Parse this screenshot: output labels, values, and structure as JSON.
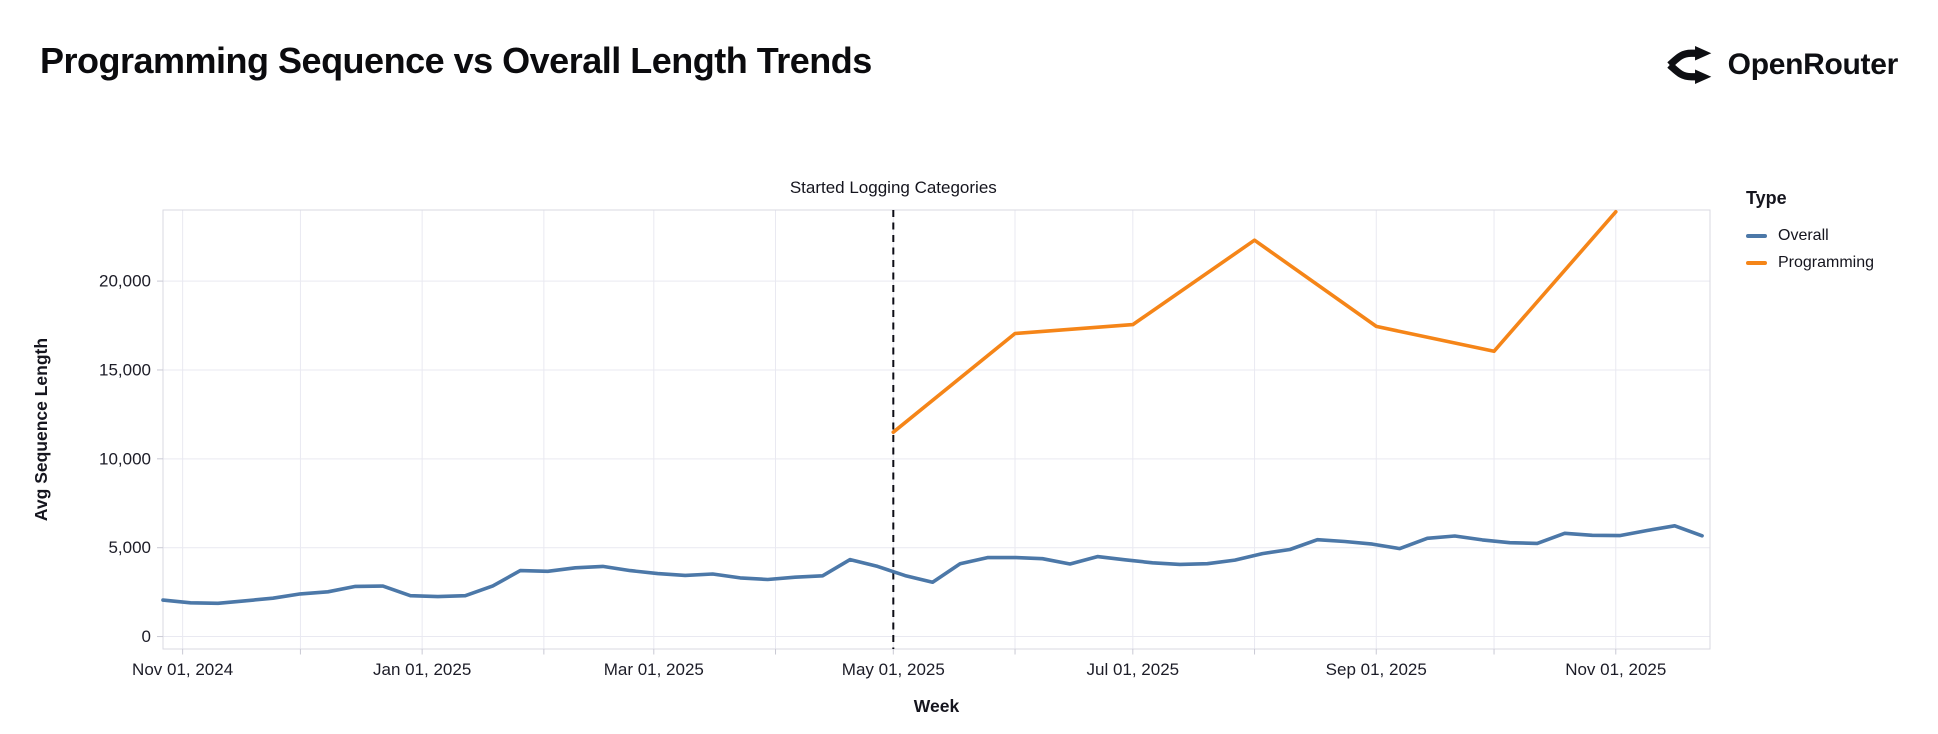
{
  "header": {
    "title": "Programming Sequence vs Overall Length Trends",
    "brand": "OpenRouter",
    "brand_icon": "openrouter-fork-arrows-icon"
  },
  "legend": {
    "title": "Type",
    "items": [
      {
        "label": "Overall",
        "color": "#4c78a8"
      },
      {
        "label": "Programming",
        "color": "#f58518"
      }
    ]
  },
  "annotation": {
    "label": "Started Logging Categories",
    "date": "2025-05-01"
  },
  "axes": {
    "x": {
      "title": "Week",
      "grid_dates": [
        "2024-11-01",
        "2024-12-01",
        "2025-01-01",
        "2025-02-01",
        "2025-03-01",
        "2025-04-01",
        "2025-05-01",
        "2025-06-01",
        "2025-07-01",
        "2025-08-01",
        "2025-09-01",
        "2025-10-01",
        "2025-11-01"
      ],
      "ticks": [
        {
          "date": "2024-11-01",
          "label": "Nov 01, 2024"
        },
        {
          "date": "2025-01-01",
          "label": "Jan 01, 2025"
        },
        {
          "date": "2025-03-01",
          "label": "Mar 01, 2025"
        },
        {
          "date": "2025-05-01",
          "label": "May 01, 2025"
        },
        {
          "date": "2025-07-01",
          "label": "Jul 01, 2025"
        },
        {
          "date": "2025-09-01",
          "label": "Sep 01, 2025"
        },
        {
          "date": "2025-11-01",
          "label": "Nov 01, 2025"
        }
      ]
    },
    "y": {
      "title": "Avg Sequence Length",
      "ticks": [
        {
          "value": 0,
          "label": "0"
        },
        {
          "value": 5000,
          "label": "5,000"
        },
        {
          "value": 10000,
          "label": "10,000"
        },
        {
          "value": 15000,
          "label": "15,000"
        },
        {
          "value": 20000,
          "label": "20,000"
        }
      ]
    }
  },
  "colors": {
    "background": "#ffffff",
    "grid": "#e9e9f1",
    "border": "#d9d9e2",
    "tick": "#c9c9d4",
    "axis_text": "#1c1c27",
    "text": "#15151e",
    "rule": "#0c0c15",
    "overall": "#4c78a8",
    "programming": "#f58518"
  },
  "chart_data": {
    "type": "line",
    "title": "Programming Sequence vs Overall Length Trends",
    "xlabel": "Week",
    "ylabel": "Avg Sequence Length",
    "x_domain": [
      "2024-10-27",
      "2025-11-25"
    ],
    "y_domain": [
      -700,
      24000
    ],
    "grid": true,
    "legend_position": "right",
    "annotation": {
      "label": "Started Logging Categories",
      "date": "2025-05-01",
      "style": "dashed-vertical-rule"
    },
    "series": [
      {
        "name": "Overall",
        "color": "#4c78a8",
        "points": [
          [
            "2024-10-27",
            2050
          ],
          [
            "2024-11-03",
            1900
          ],
          [
            "2024-11-10",
            1870
          ],
          [
            "2024-11-17",
            2010
          ],
          [
            "2024-11-24",
            2160
          ],
          [
            "2024-12-01",
            2400
          ],
          [
            "2024-12-08",
            2520
          ],
          [
            "2024-12-15",
            2820
          ],
          [
            "2024-12-22",
            2840
          ],
          [
            "2024-12-29",
            2300
          ],
          [
            "2025-01-05",
            2250
          ],
          [
            "2025-01-12",
            2300
          ],
          [
            "2025-01-19",
            2850
          ],
          [
            "2025-01-26",
            3710
          ],
          [
            "2025-02-02",
            3670
          ],
          [
            "2025-02-09",
            3870
          ],
          [
            "2025-02-16",
            3950
          ],
          [
            "2025-02-23",
            3710
          ],
          [
            "2025-03-02",
            3540
          ],
          [
            "2025-03-09",
            3440
          ],
          [
            "2025-03-16",
            3520
          ],
          [
            "2025-03-23",
            3300
          ],
          [
            "2025-03-30",
            3210
          ],
          [
            "2025-04-06",
            3340
          ],
          [
            "2025-04-13",
            3420
          ],
          [
            "2025-04-20",
            4330
          ],
          [
            "2025-04-27",
            3950
          ],
          [
            "2025-05-04",
            3430
          ],
          [
            "2025-05-11",
            3060
          ],
          [
            "2025-05-18",
            4100
          ],
          [
            "2025-05-25",
            4440
          ],
          [
            "2025-06-01",
            4450
          ],
          [
            "2025-06-08",
            4380
          ],
          [
            "2025-06-15",
            4080
          ],
          [
            "2025-06-22",
            4500
          ],
          [
            "2025-06-29",
            4320
          ],
          [
            "2025-07-06",
            4150
          ],
          [
            "2025-07-13",
            4060
          ],
          [
            "2025-07-20",
            4100
          ],
          [
            "2025-07-27",
            4300
          ],
          [
            "2025-08-03",
            4670
          ],
          [
            "2025-08-10",
            4900
          ],
          [
            "2025-08-17",
            5450
          ],
          [
            "2025-08-24",
            5350
          ],
          [
            "2025-08-31",
            5200
          ],
          [
            "2025-09-07",
            4950
          ],
          [
            "2025-09-14",
            5530
          ],
          [
            "2025-09-21",
            5660
          ],
          [
            "2025-09-28",
            5440
          ],
          [
            "2025-10-05",
            5280
          ],
          [
            "2025-10-12",
            5240
          ],
          [
            "2025-10-19",
            5810
          ],
          [
            "2025-10-26",
            5700
          ],
          [
            "2025-11-02",
            5680
          ],
          [
            "2025-11-09",
            5970
          ],
          [
            "2025-11-16",
            6230
          ],
          [
            "2025-11-23",
            5670
          ]
        ]
      },
      {
        "name": "Programming",
        "color": "#f58518",
        "points": [
          [
            "2025-05-01",
            11500
          ],
          [
            "2025-06-01",
            17050
          ],
          [
            "2025-07-01",
            17550
          ],
          [
            "2025-08-01",
            22300
          ],
          [
            "2025-09-01",
            17450
          ],
          [
            "2025-10-01",
            16050
          ],
          [
            "2025-11-01",
            23900
          ]
        ]
      }
    ]
  }
}
